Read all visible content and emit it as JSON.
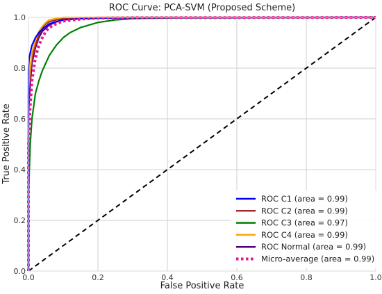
{
  "chart_data": {
    "type": "line",
    "title": "ROC Curve: PCA-SVM (Proposed Scheme)",
    "xlabel": "False Positive Rate",
    "ylabel": "True Positive Rate",
    "xlim": [
      0.0,
      1.0
    ],
    "ylim": [
      0.0,
      1.0
    ],
    "xticks": [
      "0.0",
      "0.2",
      "0.4",
      "0.6",
      "0.8",
      "1.0"
    ],
    "yticks": [
      "0.0",
      "0.2",
      "0.4",
      "0.6",
      "0.8",
      "1.0"
    ],
    "grid": true,
    "legend_position": "lower-right",
    "series": [
      {
        "name": "ROC C1 (area = 0.99)",
        "color": "#0000ff",
        "style": "solid",
        "x": [
          0.0,
          0.0,
          0.002,
          0.005,
          0.01,
          0.02,
          0.03,
          0.045,
          0.06,
          0.08,
          0.1,
          0.15,
          0.2,
          0.3,
          1.0
        ],
        "y": [
          0.0,
          0.8,
          0.84,
          0.86,
          0.89,
          0.92,
          0.94,
          0.96,
          0.975,
          0.983,
          0.99,
          0.995,
          0.997,
          0.999,
          1.0
        ]
      },
      {
        "name": "ROC C2 (area = 0.99)",
        "color": "#a52a2a",
        "style": "solid",
        "x": [
          0.0,
          0.0,
          0.005,
          0.01,
          0.02,
          0.03,
          0.04,
          0.05,
          0.06,
          0.08,
          0.1,
          0.15,
          0.2,
          1.0
        ],
        "y": [
          0.0,
          0.7,
          0.78,
          0.84,
          0.89,
          0.93,
          0.96,
          0.975,
          0.983,
          0.99,
          0.995,
          0.998,
          1.0,
          1.0
        ]
      },
      {
        "name": "ROC C3 (area = 0.97)",
        "color": "#008000",
        "style": "solid",
        "x": [
          0.0,
          0.0,
          0.005,
          0.01,
          0.02,
          0.03,
          0.04,
          0.05,
          0.06,
          0.08,
          0.1,
          0.12,
          0.15,
          0.2,
          0.25,
          0.3,
          0.4,
          1.0
        ],
        "y": [
          0.0,
          0.3,
          0.5,
          0.6,
          0.7,
          0.75,
          0.79,
          0.82,
          0.85,
          0.89,
          0.92,
          0.94,
          0.96,
          0.98,
          0.99,
          0.995,
          0.998,
          1.0
        ]
      },
      {
        "name": "ROC C4 (area = 0.99)",
        "color": "#ffa500",
        "style": "solid",
        "x": [
          0.0,
          0.0,
          0.005,
          0.01,
          0.02,
          0.03,
          0.04,
          0.05,
          0.06,
          0.08,
          0.1,
          0.12,
          0.15,
          1.0
        ],
        "y": [
          0.0,
          0.72,
          0.8,
          0.86,
          0.91,
          0.945,
          0.965,
          0.98,
          0.99,
          0.996,
          1.0,
          1.0,
          1.0,
          1.0
        ]
      },
      {
        "name": "ROC Normal (area = 0.99)",
        "color": "#4b0082",
        "style": "solid",
        "x": [
          0.0,
          0.0,
          0.005,
          0.01,
          0.02,
          0.03,
          0.04,
          0.06,
          0.08,
          0.1,
          0.15,
          0.2,
          1.0
        ],
        "y": [
          0.0,
          0.62,
          0.74,
          0.82,
          0.88,
          0.92,
          0.945,
          0.97,
          0.982,
          0.99,
          0.996,
          0.999,
          1.0
        ]
      },
      {
        "name": "Micro-average (area = 0.99)",
        "color": "#e8178a",
        "style": "dotted",
        "x": [
          0.0,
          0.0,
          0.005,
          0.01,
          0.02,
          0.03,
          0.04,
          0.05,
          0.06,
          0.08,
          0.1,
          0.15,
          0.2,
          0.3,
          1.0
        ],
        "y": [
          0.0,
          0.5,
          0.65,
          0.75,
          0.84,
          0.89,
          0.92,
          0.945,
          0.96,
          0.975,
          0.985,
          0.993,
          0.997,
          0.999,
          1.0
        ]
      },
      {
        "name": "",
        "color": "#000000",
        "style": "dashed",
        "legend": false,
        "x": [
          0.0,
          1.0
        ],
        "y": [
          0.0,
          1.0
        ]
      }
    ]
  }
}
